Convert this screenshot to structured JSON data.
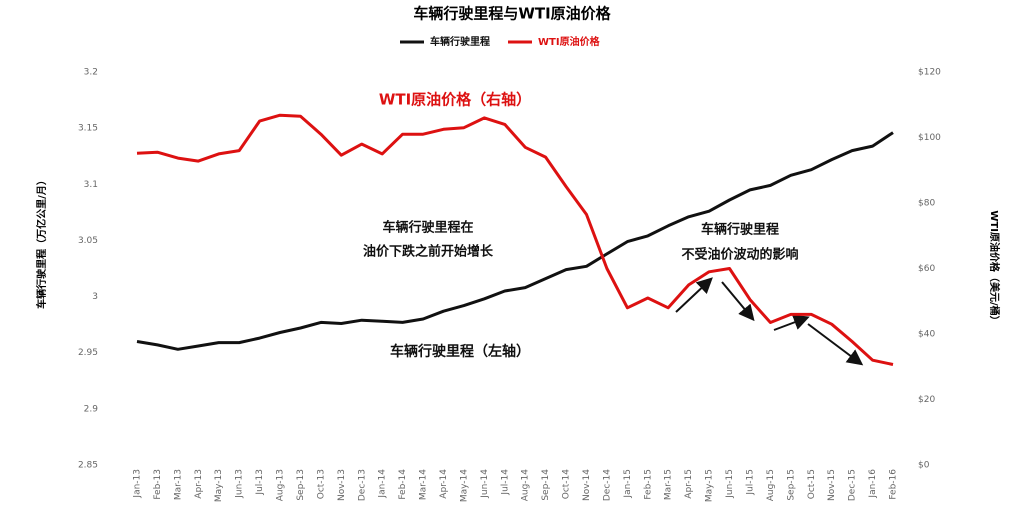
{
  "chart_data": {
    "type": "line",
    "title": "车辆行驶里程与WTI原油价格",
    "y_label": "车辆行驶里程（万亿公里/月）",
    "y2_label": "WTI原油价格（美元/桶）",
    "categories": [
      "Jan-13",
      "Feb-13",
      "Mar-13",
      "Apr-13",
      "May-13",
      "Jun-13",
      "Jul-13",
      "Aug-13",
      "Sep-13",
      "Oct-13",
      "Nov-13",
      "Dec-13",
      "Jan-14",
      "Feb-14",
      "Mar-14",
      "Apr-14",
      "May-14",
      "Jun-14",
      "Jul-14",
      "Aug-14",
      "Sep-14",
      "Oct-14",
      "Nov-14",
      "Dec-14",
      "Jan-15",
      "Feb-15",
      "Mar-15",
      "Apr-15",
      "May-15",
      "Jun-15",
      "Jul-15",
      "Aug-15",
      "Sep-15",
      "Oct-15",
      "Nov-15",
      "Dec-15",
      "Jan-16",
      "Feb-16"
    ],
    "series": [
      {
        "name": "车辆行驶里程",
        "color": "#111111",
        "axis": "y",
        "values": [
          2.96,
          2.957,
          2.953,
          2.956,
          2.959,
          2.959,
          2.963,
          2.968,
          2.972,
          2.977,
          2.976,
          2.979,
          2.978,
          2.977,
          2.98,
          2.987,
          2.992,
          2.998,
          3.005,
          3.008,
          3.016,
          3.024,
          3.027,
          3.038,
          3.049,
          3.054,
          3.063,
          3.071,
          3.076,
          3.086,
          3.095,
          3.099,
          3.108,
          3.113,
          3.122,
          3.13,
          3.134,
          3.146
        ]
      },
      {
        "name": "WTI原油价格",
        "color": "#dd1111",
        "axis": "y2",
        "values": [
          95.2,
          95.5,
          93.7,
          92.8,
          95,
          96,
          105,
          106.8,
          106.5,
          101,
          94.6,
          98,
          95,
          101,
          101,
          102.5,
          103,
          106,
          104,
          97,
          94,
          85,
          76.5,
          60,
          48,
          51,
          48,
          55,
          59,
          60,
          50.5,
          43.5,
          46,
          46,
          43,
          37.7,
          32,
          30.7
        ]
      }
    ],
    "ylim": [
      2.85,
      3.2
    ],
    "yticks": [
      2.85,
      2.9,
      2.95,
      3,
      3.05,
      3.1,
      3.15,
      3.2
    ],
    "y2lim": [
      0,
      120
    ],
    "y2ticks": [
      {
        "value": 0,
        "label": "$0"
      },
      {
        "value": 20,
        "label": "$20"
      },
      {
        "value": 40,
        "label": "$40"
      },
      {
        "value": 60,
        "label": "$60"
      },
      {
        "value": 80,
        "label": "$80"
      },
      {
        "value": 100,
        "label": "$100"
      },
      {
        "value": 120,
        "label": "$120"
      }
    ],
    "legend": "top",
    "annotations": [
      "WTI原油价格（右轴）",
      "车辆行驶里程在",
      "油价下跌之前开始增长",
      "车辆行驶里程",
      "不受油价波动的影响",
      "车辆行驶里程（左轴）"
    ]
  }
}
